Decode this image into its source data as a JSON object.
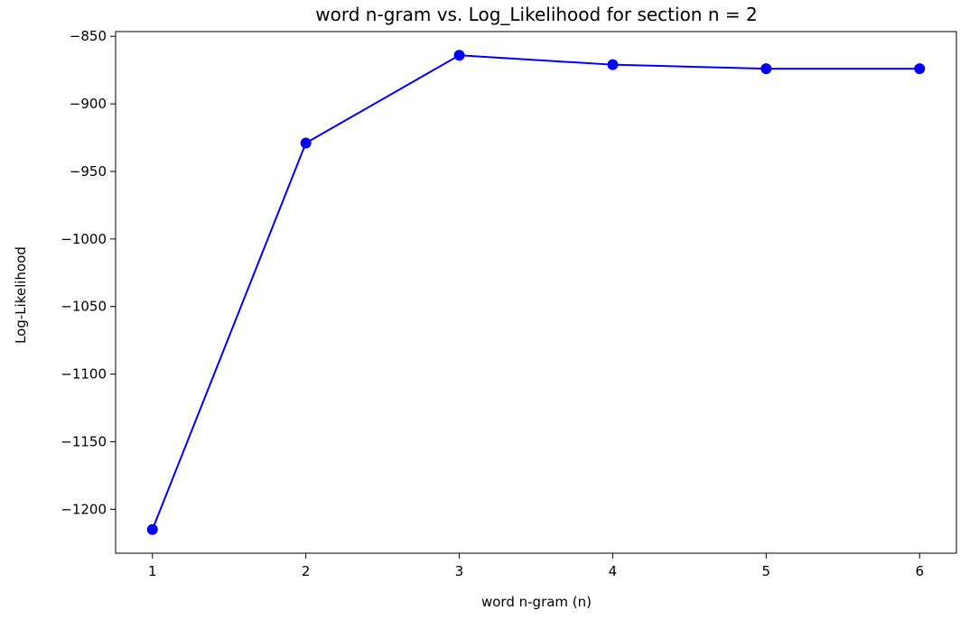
{
  "chart_data": {
    "type": "line",
    "title": "word n-gram vs. Log_Likelihood for section n = 2",
    "xlabel": "word n-gram (n)",
    "ylabel": "Log-Likelihood",
    "x": [
      1,
      2,
      3,
      4,
      5,
      6
    ],
    "series": [
      {
        "values": [
          -1215,
          -929,
          -864,
          -871,
          -874,
          -874
        ],
        "color": "#0000ff",
        "marker": "circle"
      }
    ],
    "xticks": [
      "1",
      "2",
      "3",
      "4",
      "5",
      "6"
    ],
    "yticks": [
      "−850",
      "−900",
      "−950",
      "−1000",
      "−1050",
      "−1100",
      "−1150",
      "−1200"
    ],
    "xlim": [
      0.76,
      6.24
    ],
    "ylim": [
      -1232.5,
      -846.5
    ],
    "grid": false,
    "legend": "none"
  }
}
